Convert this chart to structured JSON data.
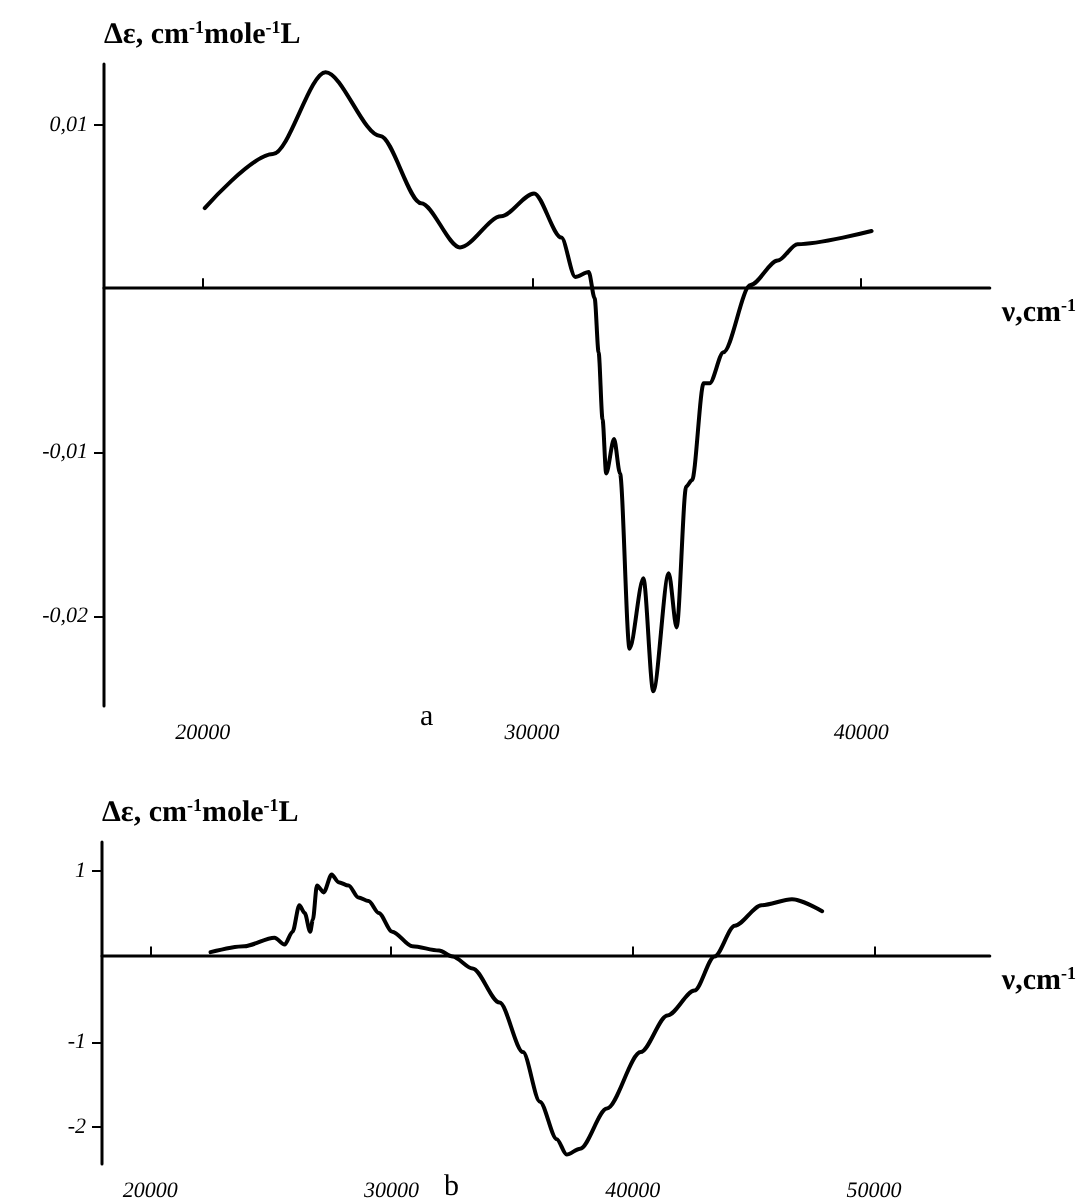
{
  "chart_data": [
    {
      "type": "line",
      "ylabel": "Δε, cm$^{-1}$mole$^{-1}$L",
      "xlabel": "ν,cm$^{-1}$",
      "annotations": [
        "a"
      ],
      "xlim": [
        17000,
        43900
      ],
      "xticks": [
        20000,
        30000,
        40000
      ],
      "ylim": [
        -0.0255,
        0.0137
      ],
      "yticks": [
        {
          "value": 0.01,
          "label": "0,01"
        },
        {
          "value": -0.01,
          "label": "-0,01"
        },
        {
          "value": -0.02,
          "label": "-0,02"
        }
      ],
      "grid": false,
      "marker": "none",
      "line_style": "solid",
      "series": [
        {
          "color": "#000000",
          "x": [
            20060,
            22130,
            23730,
            25390,
            26630,
            27810,
            29060,
            30060,
            30890,
            31310,
            31720,
            31900,
            32020,
            32140,
            32250,
            32490,
            32670,
            32960,
            33380,
            33680,
            34150,
            34390,
            34680,
            34860,
            35210,
            35390,
            35810,
            36630,
            37460,
            38060,
            40310
          ],
          "values": [
            0.0049,
            0.0082,
            0.0132,
            0.0093,
            0.0052,
            0.0025,
            0.0044,
            0.0058,
            0.0031,
            0.0007,
            0.001,
            -0.0006,
            -0.0039,
            -0.008,
            -0.0113,
            -0.0092,
            -0.0113,
            -0.022,
            -0.0177,
            -0.0246,
            -0.0174,
            -0.0207,
            -0.0121,
            -0.0117,
            -0.0058,
            -0.0058,
            -0.0039,
            0.0002,
            0.0017,
            0.0027,
            0.0035
          ]
        }
      ]
    },
    {
      "type": "line",
      "ylabel": "Δε, cm$^{-1}$mole$^{-1}$L",
      "xlabel": "ν,cm$^{-1}$",
      "annotations": [
        "b"
      ],
      "xlim": [
        18000,
        54800
      ],
      "xticks": [
        20000,
        30000,
        40000,
        50000
      ],
      "ylim": [
        -2.43,
        1.34
      ],
      "yticks": [
        1,
        -1,
        -2
      ],
      "grid": false,
      "marker": "none",
      "line_style": "solid",
      "series": [
        {
          "color": "#000000",
          "x": [
            22500,
            23900,
            25150,
            25570,
            25900,
            26180,
            26400,
            26630,
            26740,
            26910,
            27190,
            27520,
            27800,
            28220,
            28630,
            29050,
            29470,
            30030,
            30860,
            31970,
            32530,
            33360,
            34480,
            35450,
            36150,
            36850,
            37260,
            37820,
            38930,
            40330,
            41440,
            42560,
            43390,
            44230,
            45340,
            46600,
            47850
          ],
          "values": [
            0.05,
            0.12,
            0.22,
            0.14,
            0.29,
            0.6,
            0.51,
            0.29,
            0.43,
            0.83,
            0.75,
            0.96,
            0.87,
            0.83,
            0.69,
            0.65,
            0.51,
            0.29,
            0.12,
            0.07,
            0.0,
            -0.14,
            -0.54,
            -1.12,
            -1.7,
            -2.14,
            -2.32,
            -2.25,
            -1.78,
            -1.12,
            -0.69,
            -0.4,
            0.0,
            0.36,
            0.6,
            0.67,
            0.53
          ]
        }
      ]
    }
  ]
}
